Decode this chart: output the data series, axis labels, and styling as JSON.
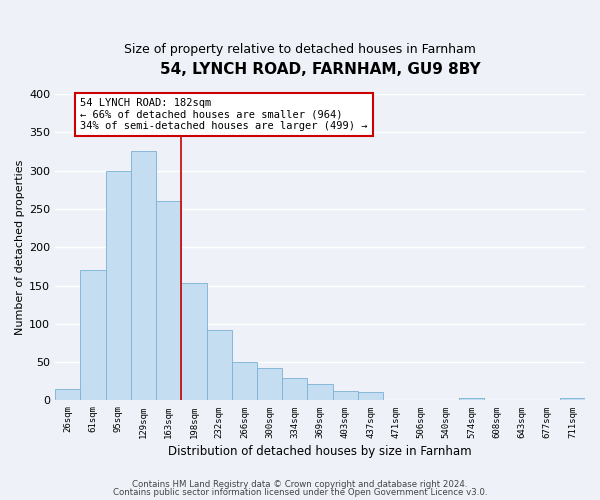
{
  "title": "54, LYNCH ROAD, FARNHAM, GU9 8BY",
  "subtitle": "Size of property relative to detached houses in Farnham",
  "xlabel": "Distribution of detached houses by size in Farnham",
  "ylabel": "Number of detached properties",
  "bar_labels": [
    "26sqm",
    "61sqm",
    "95sqm",
    "129sqm",
    "163sqm",
    "198sqm",
    "232sqm",
    "266sqm",
    "300sqm",
    "334sqm",
    "369sqm",
    "403sqm",
    "437sqm",
    "471sqm",
    "506sqm",
    "540sqm",
    "574sqm",
    "608sqm",
    "643sqm",
    "677sqm",
    "711sqm"
  ],
  "bar_heights": [
    15,
    170,
    300,
    325,
    260,
    153,
    92,
    50,
    42,
    29,
    22,
    12,
    11,
    0,
    0,
    0,
    3,
    0,
    0,
    0,
    3
  ],
  "bar_color": "#c5ddf0",
  "bar_edge_color": "#7ab0d4",
  "vline_x": 4.5,
  "annotation_line1": "54 LYNCH ROAD: 182sqm",
  "annotation_line2": "← 66% of detached houses are smaller (964)",
  "annotation_line3": "34% of semi-detached houses are larger (499) →",
  "annotation_box_color": "#ffffff",
  "annotation_box_edge": "#cc0000",
  "vline_color": "#cc0000",
  "ylim": [
    0,
    400
  ],
  "yticks": [
    0,
    50,
    100,
    150,
    200,
    250,
    300,
    350,
    400
  ],
  "footer_line1": "Contains HM Land Registry data © Crown copyright and database right 2024.",
  "footer_line2": "Contains public sector information licensed under the Open Government Licence v3.0.",
  "bg_color": "#eef2f8",
  "grid_color": "#ffffff"
}
